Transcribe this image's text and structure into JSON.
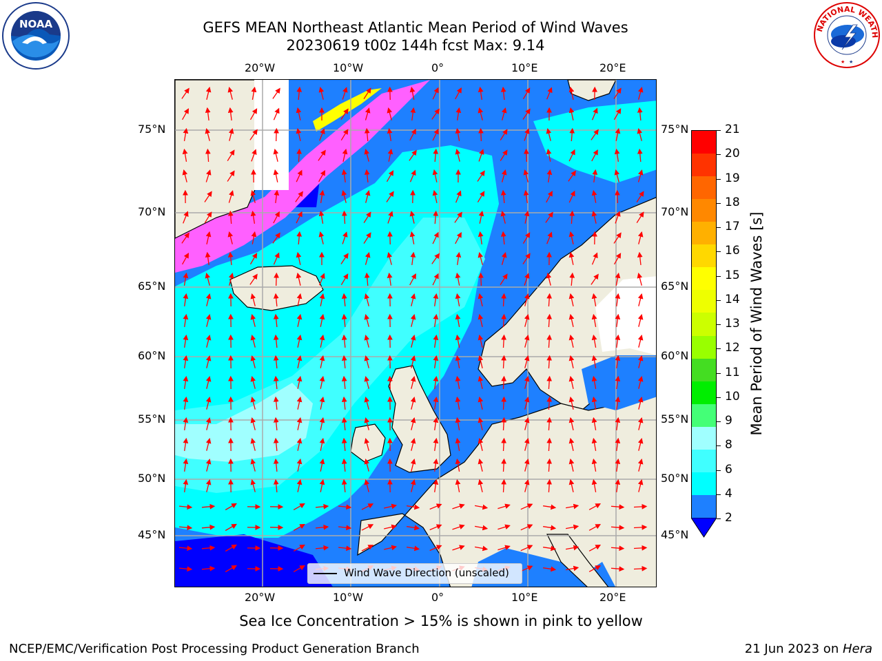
{
  "header": {
    "title_line1": "GEFS MEAN Northeast Atlantic Mean Period of Wind Waves",
    "title_line2": "20230619 t00z 144h fcst   Max: 9.14"
  },
  "logos": {
    "left": {
      "name": "noaa-logo",
      "text": "NOAA",
      "ring_text": "NATIONAL OCEANIC AND ATMOSPHERIC ADMINISTRATION · U.S. DEPARTMENT OF COMMERCE"
    },
    "right": {
      "name": "nws-logo",
      "ring_text": "NATIONAL WEATHER SERVICE"
    }
  },
  "map": {
    "lon_labels": [
      "20°W",
      "10°W",
      "0°",
      "10°E",
      "20°E"
    ],
    "lat_labels": [
      "75°N",
      "70°N",
      "65°N",
      "60°N",
      "55°N",
      "50°N",
      "45°N"
    ],
    "legend": "Wind Wave Direction (unscaled)",
    "colors": {
      "land": "#efedde",
      "ocean_2_4": "#1e80ff",
      "ocean_4_6": "#00ffff",
      "ocean_6_8": "#40ffff",
      "ocean_8_9": "#a0ffff",
      "low": "#0000ff",
      "ice_pink": "#ff60ff",
      "ice_yellow": "#ffff00",
      "arrows": "#ff0000"
    }
  },
  "colorbar": {
    "title": "Mean Period of Wind Waves [s]",
    "ticks": [
      "21",
      "20",
      "19",
      "18",
      "17",
      "16",
      "15",
      "14",
      "13",
      "12",
      "11",
      "10",
      "9",
      "8",
      "6",
      "4",
      "2"
    ],
    "bands": [
      {
        "color": "#ff0000"
      },
      {
        "color": "#ff3300"
      },
      {
        "color": "#ff6600"
      },
      {
        "color": "#ff8800"
      },
      {
        "color": "#ffb000"
      },
      {
        "color": "#ffd800"
      },
      {
        "color": "#ffff00"
      },
      {
        "color": "#eeff00"
      },
      {
        "color": "#ccff00"
      },
      {
        "color": "#99ff00"
      },
      {
        "color": "#44dd22"
      },
      {
        "color": "#00ee00"
      },
      {
        "color": "#44ff77"
      },
      {
        "color": "#a0ffff"
      },
      {
        "color": "#40ffff"
      },
      {
        "color": "#00ffff"
      },
      {
        "color": "#1e80ff"
      }
    ],
    "extend_color": "#0000ff"
  },
  "notes": {
    "ice": "Sea Ice Concentration > 15% is shown in pink to yellow"
  },
  "footer": {
    "left": "NCEP/EMC/Verification Post Processing Product Generation Branch",
    "date": "21 Jun 2023 on ",
    "machine": "Hera"
  }
}
